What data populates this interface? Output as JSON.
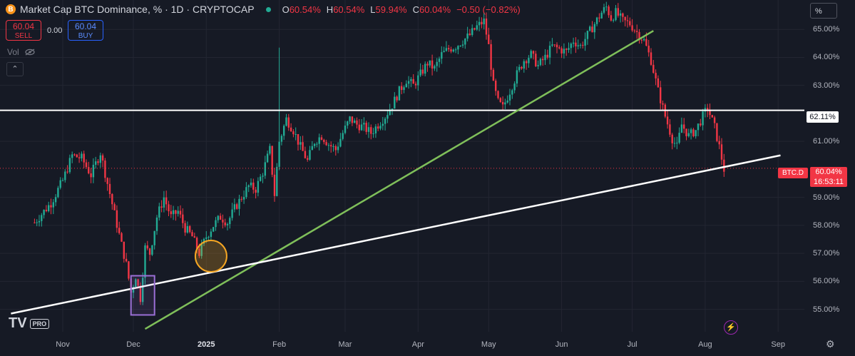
{
  "header": {
    "title": "Market Cap BTC Dominance, % · 1D · CRYPTOCAP",
    "logo": "B",
    "ohlc": [
      {
        "k": "O",
        "v": "60.54%"
      },
      {
        "k": "H",
        "v": "60.54%"
      },
      {
        "k": "L",
        "v": "59.94%"
      },
      {
        "k": "C",
        "v": "60.04%"
      },
      {
        "k": "",
        "v": "−0.50 (−0.82%)"
      }
    ]
  },
  "trade": {
    "sell_price": "60.04",
    "sell_label": "SELL",
    "spread": "0.00",
    "buy_price": "60.04",
    "buy_label": "BUY"
  },
  "vol_label": "Vol",
  "collapse_glyph": "⌃",
  "scale_button": "%",
  "y_axis_labels": [
    {
      "t": "65.00%",
      "v": 65
    },
    {
      "t": "64.00%",
      "v": 64
    },
    {
      "t": "63.00%",
      "v": 63
    },
    {
      "t": "61.00%",
      "v": 61
    },
    {
      "t": "59.00%",
      "v": 59
    },
    {
      "t": "58.00%",
      "v": 58
    },
    {
      "t": "57.00%",
      "v": 57
    },
    {
      "t": "56.00%",
      "v": 56
    },
    {
      "t": "55.00%",
      "v": 55
    }
  ],
  "x_axis_labels": [
    {
      "t": "Nov",
      "d": 0,
      "bold": false
    },
    {
      "t": "Dec",
      "d": 30,
      "bold": false
    },
    {
      "t": "2025",
      "d": 61,
      "bold": true
    },
    {
      "t": "Feb",
      "d": 92,
      "bold": false
    },
    {
      "t": "Mar",
      "d": 120,
      "bold": false
    },
    {
      "t": "Apr",
      "d": 151,
      "bold": false
    },
    {
      "t": "May",
      "d": 181,
      "bold": false
    },
    {
      "t": "Jun",
      "d": 212,
      "bold": false
    },
    {
      "t": "Jul",
      "d": 242,
      "bold": false
    },
    {
      "t": "Aug",
      "d": 273,
      "bold": false
    },
    {
      "t": "Sep",
      "d": 304,
      "bold": false
    }
  ],
  "tags": {
    "level": "62.11%",
    "symbol": "BTC.D",
    "price": "60.04%",
    "countdown": "16:53:11"
  },
  "branding": {
    "logo": "TV",
    "pro": "PRO"
  },
  "bottom": {
    "bolt": "⚡",
    "gear": "⚙"
  },
  "colors": {
    "up": "#22ab94",
    "down": "#f23645",
    "background": "#161a25",
    "green_trend": "#7fbf5a",
    "white_lines": "#ffffff",
    "box": "#9b6fd6",
    "circle": "#f5a623"
  },
  "chart_data": {
    "type": "candlestick",
    "ylim": [
      54.2,
      66.05
    ],
    "x_dates": [
      "Nov",
      "Dec",
      "2025",
      "Feb",
      "Mar",
      "Apr",
      "May",
      "Jun",
      "Jul",
      "Aug",
      "Sep"
    ],
    "close_path": [
      {
        "d": -12,
        "v": 58.1
      },
      {
        "d": -5,
        "v": 58.8
      },
      {
        "d": 0,
        "v": 59.6
      },
      {
        "d": 4,
        "v": 60.5
      },
      {
        "d": 8,
        "v": 60.4
      },
      {
        "d": 12,
        "v": 59.8
      },
      {
        "d": 16,
        "v": 60.6
      },
      {
        "d": 19,
        "v": 59.5
      },
      {
        "d": 22,
        "v": 58.4
      },
      {
        "d": 25,
        "v": 57.3
      },
      {
        "d": 27,
        "v": 56.6
      },
      {
        "d": 29,
        "v": 55.6
      },
      {
        "d": 31,
        "v": 56.2
      },
      {
        "d": 33,
        "v": 55.4
      },
      {
        "d": 35,
        "v": 57.2
      },
      {
        "d": 37,
        "v": 57.0
      },
      {
        "d": 40,
        "v": 58.3
      },
      {
        "d": 43,
        "v": 59.0
      },
      {
        "d": 46,
        "v": 58.3
      },
      {
        "d": 49,
        "v": 58.5
      },
      {
        "d": 52,
        "v": 57.9
      },
      {
        "d": 55,
        "v": 57.6
      },
      {
        "d": 58,
        "v": 57.0
      },
      {
        "d": 61,
        "v": 57.6
      },
      {
        "d": 64,
        "v": 58.0
      },
      {
        "d": 67,
        "v": 58.3
      },
      {
        "d": 70,
        "v": 58.1
      },
      {
        "d": 73,
        "v": 58.6
      },
      {
        "d": 76,
        "v": 59.0
      },
      {
        "d": 79,
        "v": 59.4
      },
      {
        "d": 82,
        "v": 59.3
      },
      {
        "d": 85,
        "v": 59.9
      },
      {
        "d": 88,
        "v": 60.7
      },
      {
        "d": 90,
        "v": 59.1
      },
      {
        "d": 92,
        "v": 61.0
      },
      {
        "d": 95,
        "v": 61.8
      },
      {
        "d": 98,
        "v": 61.4
      },
      {
        "d": 101,
        "v": 60.8
      },
      {
        "d": 104,
        "v": 60.3
      },
      {
        "d": 107,
        "v": 61.0
      },
      {
        "d": 110,
        "v": 61.2
      },
      {
        "d": 113,
        "v": 60.9
      },
      {
        "d": 116,
        "v": 60.7
      },
      {
        "d": 119,
        "v": 61.3
      },
      {
        "d": 122,
        "v": 61.8
      },
      {
        "d": 125,
        "v": 61.6
      },
      {
        "d": 128,
        "v": 61.5
      },
      {
        "d": 131,
        "v": 61.3
      },
      {
        "d": 134,
        "v": 61.6
      },
      {
        "d": 137,
        "v": 61.9
      },
      {
        "d": 140,
        "v": 62.3
      },
      {
        "d": 143,
        "v": 62.8
      },
      {
        "d": 146,
        "v": 63.2
      },
      {
        "d": 149,
        "v": 63.0
      },
      {
        "d": 152,
        "v": 63.4
      },
      {
        "d": 155,
        "v": 63.8
      },
      {
        "d": 158,
        "v": 63.6
      },
      {
        "d": 161,
        "v": 64.1
      },
      {
        "d": 164,
        "v": 64.3
      },
      {
        "d": 167,
        "v": 64.4
      },
      {
        "d": 170,
        "v": 64.6
      },
      {
        "d": 173,
        "v": 64.8
      },
      {
        "d": 176,
        "v": 65.1
      },
      {
        "d": 179,
        "v": 65.3
      },
      {
        "d": 181,
        "v": 64.4
      },
      {
        "d": 183,
        "v": 63.0
      },
      {
        "d": 185,
        "v": 62.4
      },
      {
        "d": 187,
        "v": 62.2
      },
      {
        "d": 190,
        "v": 62.8
      },
      {
        "d": 193,
        "v": 63.4
      },
      {
        "d": 196,
        "v": 63.9
      },
      {
        "d": 199,
        "v": 64.1
      },
      {
        "d": 202,
        "v": 63.7
      },
      {
        "d": 205,
        "v": 64.0
      },
      {
        "d": 208,
        "v": 64.4
      },
      {
        "d": 211,
        "v": 64.3
      },
      {
        "d": 214,
        "v": 64.2
      },
      {
        "d": 217,
        "v": 64.6
      },
      {
        "d": 220,
        "v": 64.4
      },
      {
        "d": 223,
        "v": 64.8
      },
      {
        "d": 226,
        "v": 65.2
      },
      {
        "d": 229,
        "v": 65.6
      },
      {
        "d": 231,
        "v": 65.8
      },
      {
        "d": 233,
        "v": 65.4
      },
      {
        "d": 235,
        "v": 65.6
      },
      {
        "d": 238,
        "v": 65.3
      },
      {
        "d": 241,
        "v": 65.2
      },
      {
        "d": 244,
        "v": 64.9
      },
      {
        "d": 247,
        "v": 64.6
      },
      {
        "d": 250,
        "v": 63.9
      },
      {
        "d": 253,
        "v": 62.8
      },
      {
        "d": 256,
        "v": 61.9
      },
      {
        "d": 259,
        "v": 61.1
      },
      {
        "d": 261,
        "v": 60.8
      },
      {
        "d": 263,
        "v": 61.6
      },
      {
        "d": 266,
        "v": 61.2
      },
      {
        "d": 269,
        "v": 61.4
      },
      {
        "d": 272,
        "v": 61.9
      },
      {
        "d": 274,
        "v": 62.2
      },
      {
        "d": 277,
        "v": 61.5
      },
      {
        "d": 279,
        "v": 60.8
      },
      {
        "d": 281,
        "v": 60.0
      }
    ],
    "horizontal_levels": [
      {
        "y": 62.11
      },
      {
        "y": 60.04,
        "dotted": true
      }
    ],
    "trendlines": [
      {
        "name": "green",
        "p1": [
          35,
          54.3
        ],
        "p2": [
          251,
          64.95
        ]
      },
      {
        "name": "white",
        "p1": [
          -22,
          54.85
        ],
        "p2": [
          305,
          60.5
        ]
      }
    ],
    "annotations": [
      {
        "type": "rect",
        "x": [
          29,
          39
        ],
        "y": [
          54.8,
          56.2
        ]
      },
      {
        "type": "circle",
        "x": 63,
        "y": 56.9
      }
    ]
  }
}
